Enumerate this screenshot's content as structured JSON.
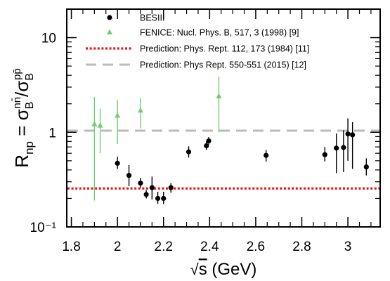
{
  "chart_data": {
    "type": "scatter",
    "xlabel": "√s (GeV)",
    "ylabel": "R_np = σ_B^{n n̄} / σ_B^{p p̄}",
    "xlim": [
      1.78,
      3.14
    ],
    "ylim": [
      0.1,
      20
    ],
    "y_scale": "log",
    "grid": false,
    "legend_position": "top-center",
    "x_ticks": [
      "1.8",
      "2",
      "2.2",
      "2.4",
      "2.6",
      "2.8",
      "3"
    ],
    "y_ticks": [
      "10⁻¹",
      "1",
      "10"
    ],
    "series": [
      {
        "name": "BESIII",
        "marker": "circle",
        "color": "#000000",
        "points": [
          {
            "x": 2.0,
            "y": 0.47,
            "lo": 0.41,
            "hi": 0.55
          },
          {
            "x": 2.05,
            "y": 0.35,
            "lo": 0.27,
            "hi": 0.45
          },
          {
            "x": 2.1,
            "y": 0.29,
            "lo": 0.26,
            "hi": 0.33
          },
          {
            "x": 2.125,
            "y": 0.22,
            "lo": 0.2,
            "hi": 0.245
          },
          {
            "x": 2.15,
            "y": 0.26,
            "lo": 0.195,
            "hi": 0.34
          },
          {
            "x": 2.175,
            "y": 0.2,
            "lo": 0.175,
            "hi": 0.235
          },
          {
            "x": 2.2,
            "y": 0.2,
            "lo": 0.175,
            "hi": 0.235
          },
          {
            "x": 2.232,
            "y": 0.26,
            "lo": 0.23,
            "hi": 0.29
          },
          {
            "x": 2.309,
            "y": 0.62,
            "lo": 0.54,
            "hi": 0.71
          },
          {
            "x": 2.386,
            "y": 0.72,
            "lo": 0.65,
            "hi": 0.8
          },
          {
            "x": 2.396,
            "y": 0.81,
            "lo": 0.74,
            "hi": 0.89
          },
          {
            "x": 2.645,
            "y": 0.57,
            "lo": 0.49,
            "hi": 0.65
          },
          {
            "x": 2.9,
            "y": 0.58,
            "lo": 0.49,
            "hi": 0.7
          },
          {
            "x": 2.95,
            "y": 0.68,
            "lo": 0.37,
            "hi": 0.97
          },
          {
            "x": 2.981,
            "y": 0.69,
            "lo": 0.38,
            "hi": 1.05
          },
          {
            "x": 3.0,
            "y": 0.96,
            "lo": 0.5,
            "hi": 1.4
          },
          {
            "x": 3.02,
            "y": 0.94,
            "lo": 0.41,
            "hi": 1.28
          },
          {
            "x": 3.08,
            "y": 0.43,
            "lo": 0.35,
            "hi": 0.53
          }
        ]
      },
      {
        "name": "FENICE: Nucl. Phys. B, 517, 3 (1998) [9]",
        "marker": "triangle",
        "color": "#6fcf6f",
        "points": [
          {
            "x": 1.9,
            "y": 1.22,
            "lo": 0.19,
            "hi": 2.35
          },
          {
            "x": 1.925,
            "y": 1.18,
            "lo": 0.6,
            "hi": 1.78
          },
          {
            "x": 2.0,
            "y": 1.5,
            "lo": 0.75,
            "hi": 2.2
          },
          {
            "x": 2.1,
            "y": 1.7,
            "lo": 1.1,
            "hi": 2.3
          },
          {
            "x": 2.44,
            "y": 2.4,
            "lo": 1.0,
            "hi": 3.9
          }
        ]
      },
      {
        "name": "Prediction: Phys. Rept. 112, 173 (1984) [11]",
        "line": "dotted",
        "color": "#e41a1c",
        "value": 0.255
      },
      {
        "name": "Prediction: Phys Rept. 550-551 (2015) [12]",
        "line": "dashed",
        "color": "#bbbbbb",
        "value": 1.04
      }
    ]
  }
}
